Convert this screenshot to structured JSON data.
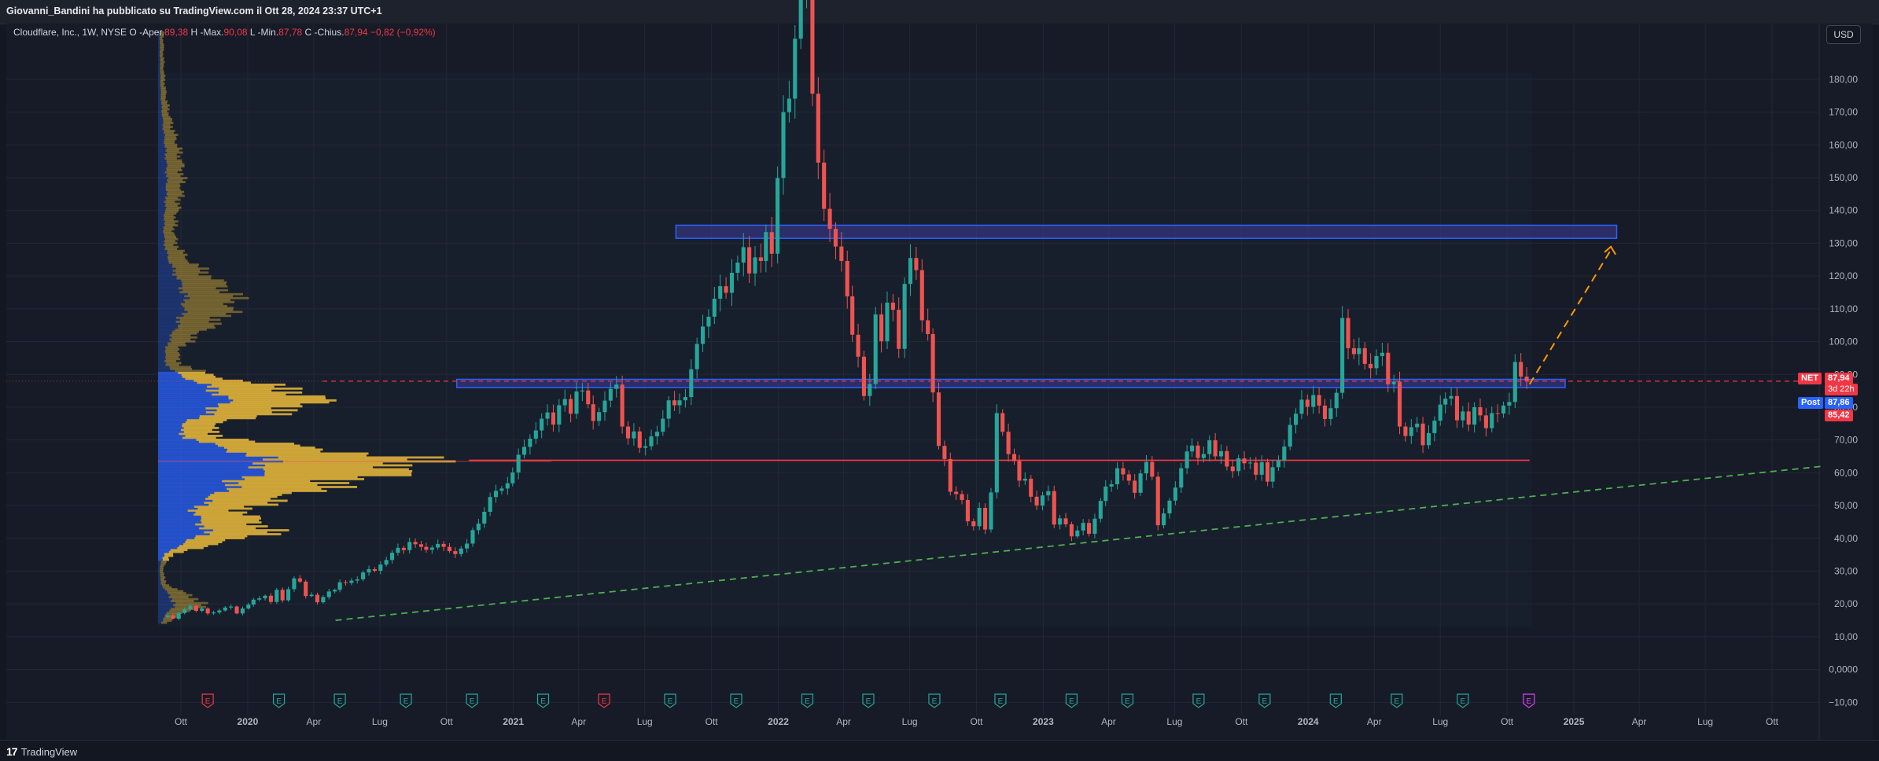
{
  "header": {
    "publisher": "Giovanni_Bandini ha pubblicato su TradingView.com il Ott 28, 2024 23:37 UTC+1"
  },
  "legend": {
    "symbol": "Cloudflare, Inc., 1W, NYSE",
    "open_label": "O",
    "open_text": "Aper.",
    "open_value": "89,38",
    "high_label": "H",
    "high_text": "Max.",
    "high_value": "90,08",
    "low_label": "L",
    "low_text": "Min.",
    "low_value": "87,78",
    "close_label": "C",
    "close_text": "Chius.",
    "close_value": "87,94",
    "change_value": "−0,82 (−0,92%)"
  },
  "currency_button": "USD",
  "price_tags": {
    "ticker": "NET",
    "last": "87,94",
    "countdown": "3d 22h",
    "post_label": "Post",
    "post_price": "87,86",
    "extra_price": "85,42",
    "axis_top_visible": "90,00"
  },
  "footer": {
    "brand": "TradingView",
    "brand_mark": "17"
  },
  "colors": {
    "up": "#26a69a",
    "down": "#ef5350",
    "background": "#161b27",
    "value_area": "#2962ff",
    "volume_profile": "#e2b53a",
    "zone_fill": "#3f3a9a",
    "zone_border": "#2962ff",
    "support_line": "#f23645",
    "trendline": "#4caf50",
    "projection": "#ff9800"
  },
  "chart_data": {
    "type": "candlestick",
    "symbol": "Cloudflare, Inc.",
    "timeframe": "1W",
    "exchange": "NYSE",
    "y_axis": {
      "ticks": [
        -10,
        0,
        10,
        20,
        30,
        40,
        50,
        60,
        70,
        80,
        90,
        100,
        110,
        120,
        130,
        140,
        150,
        160,
        170,
        180
      ],
      "tick_labels": [
        "−10,00",
        "0,0000",
        "10,00",
        "20,00",
        "30,00",
        "40,00",
        "50,00",
        "60,00",
        "70,00",
        "80,00",
        "90,00",
        "100,00",
        "110,00",
        "120,00",
        "130,00",
        "140,00",
        "150,00",
        "160,00",
        "170,00",
        "180,00"
      ],
      "range": [
        -14,
        197
      ]
    },
    "x_axis": {
      "labels": [
        "Ott",
        "2020",
        "Apr",
        "Lug",
        "Ott",
        "2021",
        "Apr",
        "Lug",
        "Ott",
        "2022",
        "Apr",
        "Lug",
        "Ott",
        "2023",
        "Apr",
        "Lug",
        "Ott",
        "2024",
        "Apr",
        "Lug",
        "Ott",
        "2025",
        "Apr",
        "Lug",
        "Ott"
      ],
      "dates": [
        "2019-10-01",
        "2020-01-01",
        "2020-04-01",
        "2020-07-01",
        "2020-10-01",
        "2021-01-01",
        "2021-04-01",
        "2021-07-01",
        "2021-10-01",
        "2022-01-01",
        "2022-04-01",
        "2022-07-01",
        "2022-10-01",
        "2023-01-01",
        "2023-04-01",
        "2023-07-01",
        "2023-10-01",
        "2024-01-01",
        "2024-04-01",
        "2024-07-01",
        "2024-10-01",
        "2025-01-01",
        "2025-04-01",
        "2025-07-01",
        "2025-10-01"
      ]
    },
    "earnings_markers": [
      {
        "date": "2019-11-07",
        "label": "E",
        "type": "miss"
      },
      {
        "date": "2020-02-13",
        "label": "E",
        "type": "beat"
      },
      {
        "date": "2020-05-07",
        "label": "E",
        "type": "beat"
      },
      {
        "date": "2020-08-06",
        "label": "E",
        "type": "beat"
      },
      {
        "date": "2020-11-05",
        "label": "E",
        "type": "beat"
      },
      {
        "date": "2021-02-11",
        "label": "E",
        "type": "beat"
      },
      {
        "date": "2021-05-06",
        "label": "E",
        "type": "miss"
      },
      {
        "date": "2021-08-05",
        "label": "E",
        "type": "beat"
      },
      {
        "date": "2021-11-04",
        "label": "E",
        "type": "beat"
      },
      {
        "date": "2022-02-10",
        "label": "E",
        "type": "beat"
      },
      {
        "date": "2022-05-05",
        "label": "E",
        "type": "beat"
      },
      {
        "date": "2022-08-04",
        "label": "E",
        "type": "beat"
      },
      {
        "date": "2022-11-03",
        "label": "E",
        "type": "beat"
      },
      {
        "date": "2023-02-09",
        "label": "E",
        "type": "beat"
      },
      {
        "date": "2023-04-27",
        "label": "E",
        "type": "beat"
      },
      {
        "date": "2023-08-03",
        "label": "E",
        "type": "beat"
      },
      {
        "date": "2023-11-02",
        "label": "E",
        "type": "beat"
      },
      {
        "date": "2024-02-08",
        "label": "E",
        "type": "beat"
      },
      {
        "date": "2024-05-02",
        "label": "E",
        "type": "beat"
      },
      {
        "date": "2024-08-01",
        "label": "E",
        "type": "beat"
      },
      {
        "date": "2024-10-31",
        "label": "E",
        "type": "upcoming"
      }
    ],
    "candles_weekly_approx": {
      "start": "2019-09-13",
      "end": "2024-10-28",
      "closes": [
        16.5,
        15.5,
        17.2,
        18.4,
        19.4,
        17.9,
        18.6,
        17.1,
        17.4,
        18.0,
        18.9,
        19.2,
        17.1,
        18.6,
        19.8,
        21.3,
        21.7,
        22.5,
        20.6,
        24.3,
        21.1,
        24.5,
        27.8,
        26.8,
        22.4,
        22.8,
        20.5,
        22.1,
        23.8,
        24.3,
        26.6,
        26.4,
        27.1,
        27.5,
        29.6,
        30.6,
        30.1,
        32.0,
        33.4,
        35.6,
        37.1,
        36.4,
        38.9,
        38.2,
        37.4,
        36.5,
        37.2,
        38.3,
        37.4,
        36.1,
        35.2,
        36.9,
        38.4,
        42.5,
        44.5,
        48.1,
        52.6,
        54.5,
        55.2,
        56.8,
        60.1,
        65.5,
        67.9,
        70.4,
        72.9,
        76.5,
        78.4,
        74.7,
        80.6,
        82.5,
        78.0,
        84.8,
        85.1,
        80.9,
        75.8,
        78.5,
        82.0,
        85.6,
        86.9,
        74.1,
        70.5,
        72.6,
        67.6,
        68.1,
        71.1,
        72.5,
        76.5,
        82.1,
        80.6,
        82.1,
        83.1,
        91.6,
        99.3,
        104.6,
        107.6,
        113.1,
        116.9,
        114.9,
        121.0,
        124.1,
        128.8,
        120.8,
        125.7,
        124.6,
        133.4,
        126.8,
        149.9,
        170.0,
        174.1,
        192.4,
        208.9,
        220.9,
        175.6,
        154.6,
        140.5,
        134.4,
        129.0,
        124.6,
        113.8,
        102.1,
        95.4,
        83.4,
        87.1,
        108.3,
        100.1,
        111.9,
        109.7,
        97.8,
        117.6,
        125.5,
        121.8,
        106.5,
        102.3,
        84.5,
        68.2,
        64.2,
        54.2,
        53.5,
        51.7,
        45.2,
        43.7,
        49.3,
        42.7,
        54.0,
        78.2,
        72.5,
        65.7,
        63.6,
        57.6,
        58.2,
        52.7,
        50.0,
        53.1,
        54.4,
        44.2,
        46.1,
        44.3,
        40.6,
        42.4,
        44.7,
        41.4,
        46.0,
        51.4,
        55.8,
        56.5,
        61.4,
        59.5,
        57.6,
        53.9,
        59.8,
        63.3,
        58.8,
        44.0,
        47.6,
        51.5,
        55.5,
        61.4,
        66.5,
        68.3,
        64.5,
        65.7,
        69.9,
        65.0,
        66.6,
        61.9,
        60.5,
        64.4,
        62.9,
        63.1,
        59.4,
        63.2,
        57.3,
        61.7,
        63.8,
        68.0,
        74.6,
        78.0,
        82.3,
        80.1,
        83.7,
        80.5,
        76.4,
        79.7,
        84.4,
        107.2,
        98.0,
        96.2,
        98.0,
        93.2,
        91.9,
        95.6,
        96.6,
        87.0,
        87.8,
        74.1,
        71.2,
        73.9,
        75.0,
        68.4,
        72.1,
        75.9,
        80.8,
        82.6,
        83.4,
        76.0,
        78.7,
        74.7,
        80.0,
        77.5,
        73.6,
        78.2,
        78.1,
        80.5,
        81.6,
        93.8,
        89.3,
        87.94
      ]
    },
    "levels": {
      "upper_zone": {
        "from": 131.5,
        "to": 135.5,
        "start": "2021-08-13",
        "end": "2025-03-01"
      },
      "mid_zone": {
        "from": 86.0,
        "to": 88.5,
        "start": "2020-10-15",
        "end": "2024-12-20"
      },
      "support_line": {
        "value": 63.8,
        "start": "2020-11-01",
        "end": "2024-11-01"
      },
      "dashed_price_line": {
        "value": 87.94
      },
      "trendline": {
        "from_date": "2020-05-01",
        "from_value": 15.0,
        "to_date": "2025-12-10",
        "to_value": 62.0
      },
      "projection": {
        "from_date": "2024-11-01",
        "from_value": 87.0,
        "to_date": "2025-02-21",
        "to_value": 128.0
      }
    },
    "volume_profile": {
      "value_area_high": 90.5,
      "value_area_low": 33.0,
      "poc": 63.5
    }
  }
}
